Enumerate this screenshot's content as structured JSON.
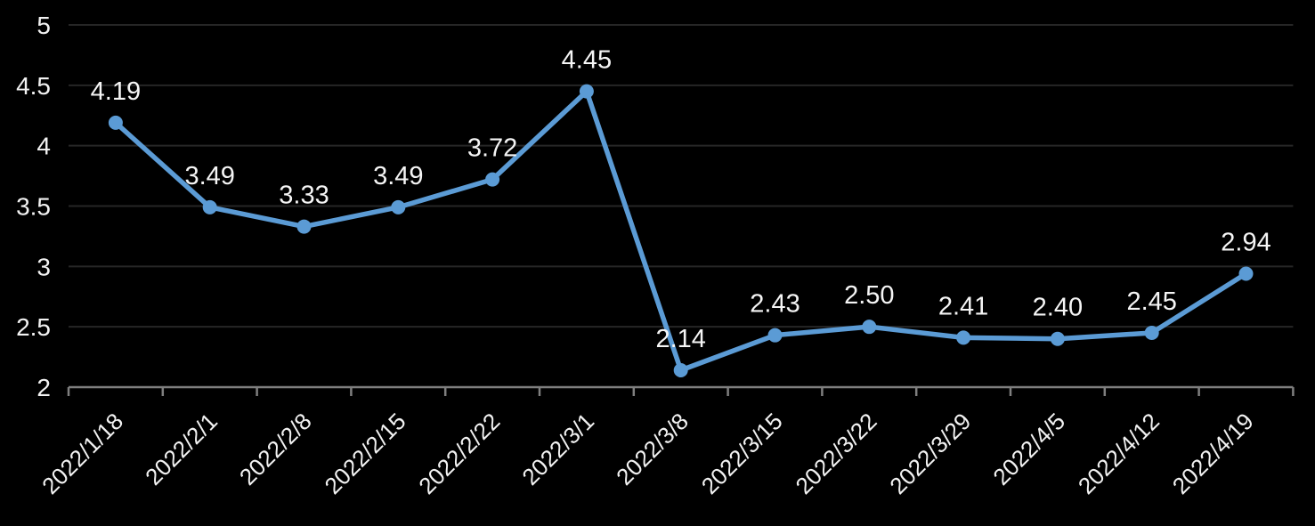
{
  "chart_data": {
    "type": "line",
    "title": "",
    "xlabel": "",
    "ylabel": "",
    "legend_position": "none",
    "grid": "horizontal",
    "x": [
      "2022/1/18",
      "2022/2/1",
      "2022/2/8",
      "2022/2/15",
      "2022/2/22",
      "2022/3/1",
      "2022/3/8",
      "2022/3/15",
      "2022/3/22",
      "2022/3/29",
      "2022/4/5",
      "2022/4/12",
      "2022/4/19"
    ],
    "values": [
      4.19,
      3.49,
      3.33,
      3.49,
      3.72,
      4.45,
      2.14,
      2.43,
      2.5,
      2.41,
      2.4,
      2.45,
      2.94
    ],
    "data_labels": [
      "4.19",
      "3.49",
      "3.33",
      "3.49",
      "3.72",
      "4.45",
      "2.14",
      "2.43",
      "2.50",
      "2.41",
      "2.40",
      "2.45",
      "2.94"
    ],
    "y_tick_labels": [
      "2",
      "2.5",
      "3",
      "3.5",
      "4",
      "4.5",
      "5"
    ],
    "y_tick_values": [
      2,
      2.5,
      3,
      3.5,
      4,
      4.5,
      5
    ],
    "ylim": [
      2,
      5
    ],
    "marker": "circle",
    "colors": {
      "background": "#000000",
      "series_line": "#5B9BD5",
      "series_marker": "#5B9BD5",
      "label_text": "#F2F2F2",
      "gridline": "#262626",
      "axis_line": "#7F7F7F"
    }
  }
}
